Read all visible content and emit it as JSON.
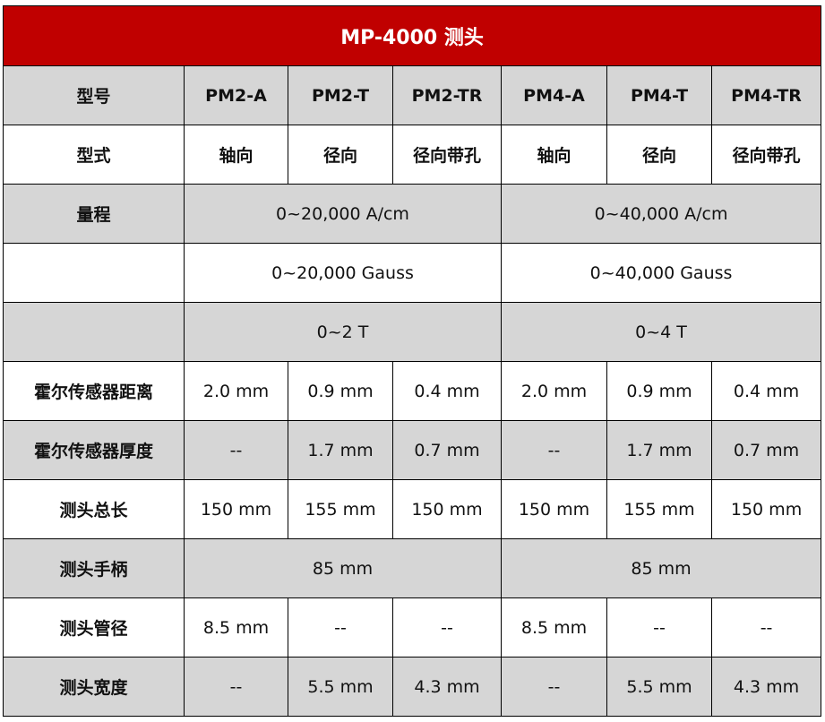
{
  "title": "MP-4000 测头",
  "rows": [
    {
      "label": "型号",
      "cells": [
        "PM2-A",
        "PM2-T",
        "PM2-TR",
        "PM4-A",
        "PM4-T",
        "PM4-TR"
      ]
    },
    {
      "label": "型式",
      "cells": [
        "轴向",
        "径向",
        "径向带孔",
        "轴向",
        "径向",
        "径向带孔"
      ]
    },
    {
      "label": "量程",
      "cells": [
        "0~20,000 A/cm",
        "0~40,000 A/cm"
      ]
    },
    {
      "label": "",
      "cells": [
        "0~20,000 Gauss",
        "0~40,000 Gauss"
      ]
    },
    {
      "label": "",
      "cells": [
        "0~2 T",
        "0~4 T"
      ]
    },
    {
      "label": "霍尔传感器距离",
      "cells": [
        "2.0 mm",
        "0.9 mm",
        "0.4 mm",
        "2.0 mm",
        "0.9 mm",
        "0.4 mm"
      ]
    },
    {
      "label": "霍尔传感器厚度",
      "cells": [
        "--",
        "1.7 mm",
        "0.7 mm",
        "--",
        "1.7 mm",
        "0.7 mm"
      ]
    },
    {
      "label": "测头总长",
      "cells": [
        "150 mm",
        "155 mm",
        "150 mm",
        "150 mm",
        "155 mm",
        "150 mm"
      ]
    },
    {
      "label": "测头手柄",
      "cells": [
        "85 mm",
        "85 mm"
      ]
    },
    {
      "label": "测头管径",
      "cells": [
        "8.5 mm",
        "--",
        "--",
        "8.5 mm",
        "--",
        "--"
      ]
    },
    {
      "label": "测头宽度",
      "cells": [
        "--",
        "5.5 mm",
        "4.3 mm",
        "--",
        "5.5 mm",
        "4.3 mm"
      ]
    }
  ],
  "colors": {
    "header": "#c00000",
    "shaded": "#d6d6d6"
  }
}
